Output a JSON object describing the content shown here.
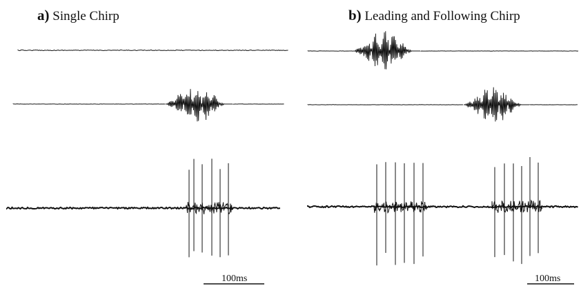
{
  "panels": [
    {
      "letter": "a)",
      "title": "Single Chirp",
      "scale_bar_label": "100ms",
      "traces": [
        {
          "type": "flat",
          "noise": "low"
        },
        {
          "type": "chirp",
          "bursts": 1
        },
        {
          "type": "spikes",
          "groups": 1,
          "spikes_per_group": 6
        }
      ]
    },
    {
      "letter": "b)",
      "title": "Leading and Following Chirp",
      "scale_bar_label": "100ms",
      "traces": [
        {
          "type": "chirp",
          "bursts": 1,
          "position": "leading"
        },
        {
          "type": "chirp",
          "bursts": 1,
          "position": "following"
        },
        {
          "type": "spikes",
          "groups": 2,
          "spikes_per_group": 6
        }
      ]
    }
  ],
  "colors": {
    "trace": "#111111",
    "background": "#ffffff"
  }
}
